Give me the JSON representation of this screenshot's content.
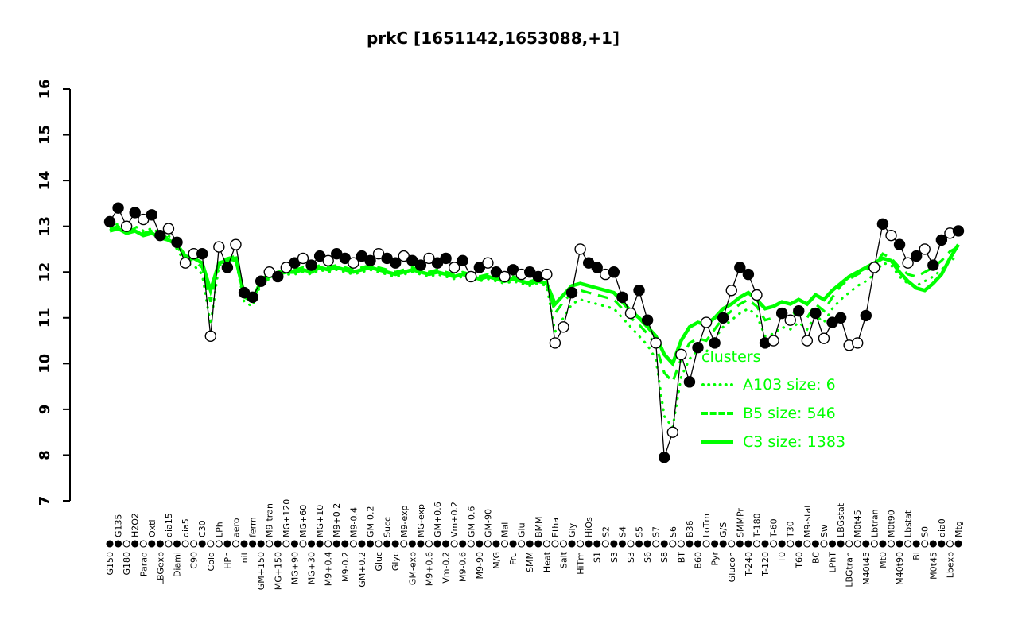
{
  "title": "prkC [1651142,1653088,+1]",
  "colors": {
    "cluster_green": "#00ff00",
    "point_stroke": "#000000",
    "open_fill": "#ffffff",
    "background": "#ffffff"
  },
  "legend": {
    "heading": "clusters",
    "entries": [
      {
        "label": "A103 size: 6",
        "style": "dotted"
      },
      {
        "label": "B5 size: 546",
        "style": "dashed"
      },
      {
        "label": "C3 size: 1383",
        "style": "solid"
      }
    ]
  },
  "chart_data": {
    "type": "line",
    "title": "prkC [1651142,1653088,+1]",
    "ylabel": "",
    "xlabel": "",
    "ylim": [
      7,
      16
    ],
    "yticks": [
      7,
      8,
      9,
      10,
      11,
      12,
      13,
      14,
      15,
      16
    ],
    "grid": false,
    "legend_position": "center-right",
    "categories": [
      "G150",
      "G135",
      "G180",
      "H2O2",
      "Paraq",
      "Oxtl",
      "LBGexp",
      "dia15",
      "Diami",
      "dia5",
      "C90",
      "C30",
      "Cold",
      "LPh",
      "HPh",
      "aero",
      "nit",
      "ferm",
      "GM+150",
      "M9-tran",
      "MG+150",
      "MG+120",
      "MG+90",
      "MG+60",
      "MG+30",
      "MG+10",
      "M9+0.4",
      "M9+0.2",
      "M9-0.2",
      "M9-0.4",
      "GM+0.2",
      "GM-0.2",
      "Gluc",
      "Succ",
      "Glyc",
      "M9-exp",
      "GM-exp",
      "MG-exp",
      "M9+0.6",
      "GM+0.6",
      "Vm-0.2",
      "Vm+0.2",
      "M9-0.6",
      "GM-0.6",
      "M9-90",
      "GM-90",
      "M/G",
      "Mal",
      "Fru",
      "Glu",
      "SMM",
      "BMM",
      "Heat",
      "Etha",
      "Salt",
      "Gly",
      "HiTm",
      "HiOs",
      "S1",
      "S2",
      "S3",
      "S4",
      "S3",
      "S5",
      "S6",
      "S7",
      "S8",
      "S6",
      "BT",
      "B36",
      "B60",
      "LoTm",
      "Pyr",
      "G/S",
      "Glucon",
      "SMMPr",
      "T-240",
      "T-180",
      "T-120",
      "T-60",
      "T0",
      "T30",
      "T60",
      "M9-stat",
      "BC",
      "Sw",
      "LPhT",
      "LBGstat",
      "LBGtran",
      "M0t45",
      "M40t45",
      "Lbtran",
      "Mt0",
      "M0t90",
      "M40t90",
      "Lbstat",
      "BI",
      "S0",
      "M0t45",
      "dia0",
      "Lbexp",
      "Mtg"
    ],
    "series": [
      {
        "name": "gene expression",
        "color": "#000000",
        "style": "points",
        "values": [
          13.1,
          13.4,
          13.0,
          13.3,
          13.15,
          13.25,
          12.8,
          12.95,
          12.65,
          12.2,
          12.4,
          12.4,
          10.6,
          12.55,
          12.1,
          12.6,
          11.55,
          11.45,
          11.8,
          12.0,
          11.9,
          12.1,
          12.2,
          12.3,
          12.15,
          12.35,
          12.25,
          12.4,
          12.3,
          12.2,
          12.35,
          12.25,
          12.4,
          12.3,
          12.2,
          12.35,
          12.25,
          12.15,
          12.3,
          12.2,
          12.3,
          12.1,
          12.25,
          11.9,
          12.1,
          12.2,
          12.0,
          11.9,
          12.05,
          11.95,
          12.0,
          11.9,
          11.95,
          10.45,
          10.8,
          11.55,
          12.5,
          12.2,
          12.1,
          11.95,
          12.0,
          11.45,
          11.1,
          11.6,
          10.95,
          10.45,
          7.95,
          8.5,
          10.2,
          9.6,
          10.35,
          10.9,
          10.45,
          11.0,
          11.6,
          12.1,
          11.95,
          11.5,
          10.45,
          10.5,
          11.1,
          10.95,
          11.15,
          10.5,
          11.1,
          10.55,
          10.9,
          11.0,
          10.4,
          10.45,
          11.05,
          12.1,
          13.05,
          12.8,
          12.6,
          12.2,
          12.35,
          12.5,
          12.15,
          12.7,
          12.85,
          12.9
        ],
        "fills": [
          "f",
          "f",
          "o",
          "f",
          "o",
          "f",
          "f",
          "o",
          "f",
          "o",
          "o",
          "f",
          "o",
          "o",
          "f",
          "o",
          "f",
          "f",
          "f",
          "o",
          "f",
          "o",
          "f",
          "o",
          "f",
          "f",
          "o",
          "f",
          "f",
          "o",
          "f",
          "f",
          "o",
          "f",
          "f",
          "o",
          "f",
          "f",
          "o",
          "f",
          "f",
          "o",
          "f",
          "o",
          "f",
          "o",
          "f",
          "o",
          "f",
          "o",
          "f",
          "f",
          "o",
          "o",
          "o",
          "f",
          "o",
          "f",
          "f",
          "o",
          "f",
          "f",
          "o",
          "f",
          "f",
          "o",
          "f",
          "o",
          "o",
          "f",
          "f",
          "o",
          "f",
          "f",
          "o",
          "f",
          "f",
          "o",
          "f",
          "o",
          "f",
          "o",
          "f",
          "o",
          "f",
          "o",
          "f",
          "f",
          "o",
          "o",
          "f",
          "o",
          "f",
          "o",
          "f",
          "o",
          "f",
          "o",
          "f",
          "f",
          "o",
          "f"
        ]
      },
      {
        "name": "A103",
        "size": 6,
        "color": "#00ff00",
        "style": "dotted",
        "values": [
          13.0,
          13.05,
          12.95,
          13.0,
          12.9,
          12.95,
          12.85,
          12.8,
          12.5,
          12.2,
          12.15,
          11.95,
          10.85,
          12.15,
          12.2,
          12.25,
          11.35,
          11.25,
          11.75,
          11.85,
          11.9,
          11.95,
          11.95,
          12.0,
          11.95,
          12.05,
          12.0,
          12.05,
          12.0,
          11.95,
          12.0,
          12.05,
          12.0,
          11.95,
          11.9,
          11.95,
          12.0,
          11.95,
          11.9,
          11.95,
          11.9,
          11.85,
          11.9,
          11.85,
          11.8,
          11.85,
          11.8,
          11.75,
          11.8,
          11.75,
          11.7,
          11.75,
          11.7,
          10.7,
          11.0,
          11.3,
          11.4,
          11.35,
          11.3,
          11.25,
          11.2,
          11.0,
          10.8,
          10.6,
          10.4,
          10.1,
          8.85,
          8.6,
          9.7,
          10.1,
          10.3,
          10.25,
          10.55,
          10.8,
          10.95,
          11.1,
          11.2,
          11.05,
          10.6,
          10.65,
          10.8,
          10.75,
          10.9,
          10.75,
          11.05,
          10.9,
          11.2,
          11.4,
          11.55,
          11.7,
          11.8,
          11.95,
          12.2,
          12.15,
          11.9,
          11.75,
          11.7,
          11.8,
          11.9,
          12.05,
          12.25,
          12.35
        ]
      },
      {
        "name": "B5",
        "size": 546,
        "color": "#00ff00",
        "style": "dashed",
        "values": [
          12.95,
          13.0,
          12.9,
          12.95,
          12.85,
          12.9,
          12.8,
          12.75,
          12.55,
          12.3,
          12.25,
          12.1,
          11.35,
          12.25,
          12.3,
          12.35,
          11.45,
          11.35,
          11.85,
          11.95,
          12.0,
          12.05,
          12.05,
          12.1,
          12.05,
          12.15,
          12.1,
          12.15,
          12.1,
          12.05,
          12.1,
          12.15,
          12.1,
          12.05,
          12.0,
          12.05,
          12.1,
          12.05,
          12.0,
          12.05,
          12.0,
          11.95,
          12.0,
          11.95,
          11.9,
          11.95,
          11.9,
          11.85,
          11.9,
          11.85,
          11.8,
          11.85,
          11.8,
          11.1,
          11.35,
          11.55,
          11.6,
          11.55,
          11.5,
          11.45,
          11.4,
          11.2,
          11.0,
          10.85,
          10.65,
          10.4,
          9.8,
          9.6,
          10.1,
          10.45,
          10.55,
          10.5,
          10.75,
          11.0,
          11.15,
          11.3,
          11.4,
          11.25,
          10.95,
          11.0,
          11.1,
          11.05,
          11.15,
          11.0,
          11.3,
          11.15,
          11.45,
          11.7,
          11.85,
          11.95,
          12.05,
          12.15,
          12.4,
          12.3,
          12.1,
          11.95,
          11.9,
          12.0,
          12.1,
          12.25,
          12.45,
          12.55
        ]
      },
      {
        "name": "C3",
        "size": 1383,
        "color": "#00ff00",
        "style": "solid",
        "values": [
          12.9,
          12.95,
          12.85,
          12.9,
          12.8,
          12.85,
          12.75,
          12.7,
          12.6,
          12.35,
          12.3,
          12.2,
          11.6,
          12.2,
          12.25,
          12.3,
          11.5,
          11.4,
          11.8,
          11.9,
          11.95,
          12.0,
          12.0,
          12.05,
          12.0,
          12.1,
          12.05,
          12.1,
          12.05,
          12.0,
          12.05,
          12.1,
          12.05,
          12.0,
          11.95,
          12.0,
          12.05,
          12.0,
          11.95,
          12.0,
          11.95,
          11.9,
          11.95,
          11.9,
          11.85,
          11.9,
          11.85,
          11.8,
          11.85,
          11.8,
          11.75,
          11.8,
          11.75,
          11.3,
          11.5,
          11.7,
          11.75,
          11.7,
          11.65,
          11.6,
          11.55,
          11.35,
          11.15,
          11.0,
          10.8,
          10.6,
          10.2,
          10.0,
          10.5,
          10.8,
          10.9,
          10.85,
          11.0,
          11.2,
          11.3,
          11.45,
          11.55,
          11.4,
          11.2,
          11.25,
          11.35,
          11.3,
          11.4,
          11.3,
          11.5,
          11.4,
          11.6,
          11.75,
          11.9,
          12.0,
          12.1,
          12.2,
          12.3,
          12.25,
          12.0,
          11.8,
          11.65,
          11.6,
          11.75,
          11.95,
          12.3,
          12.6
        ]
      }
    ]
  }
}
